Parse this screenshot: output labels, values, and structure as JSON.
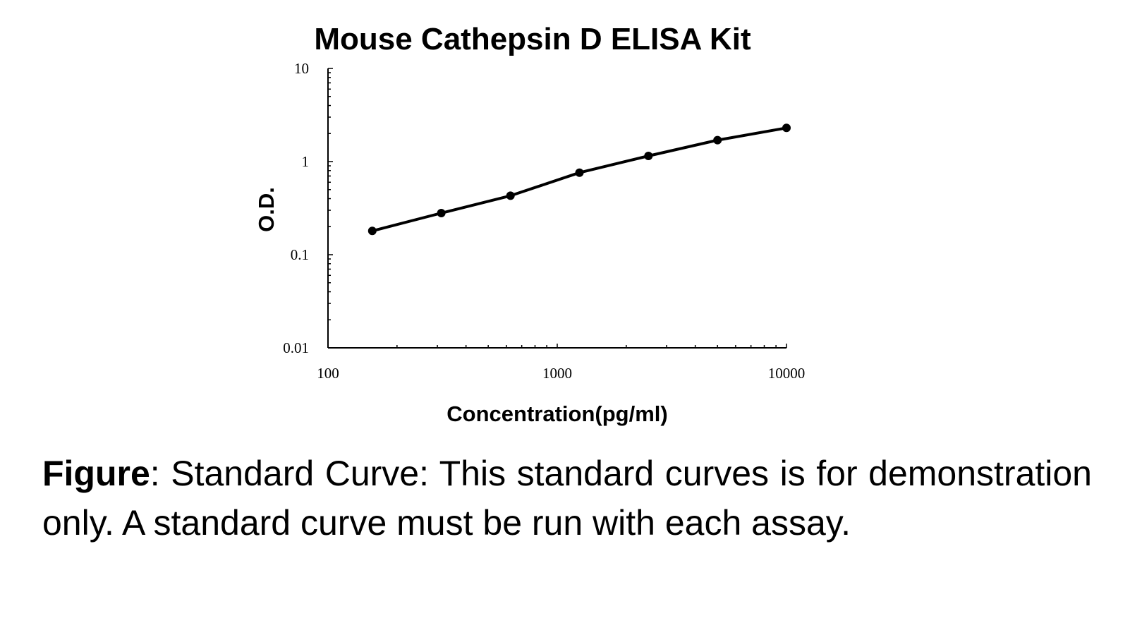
{
  "caption": {
    "label": "Figure",
    "separator": ":",
    "text": " Standard Curve: This standard curves is for demonstration only. A standard curve must be run with each assay."
  },
  "chart_data": {
    "type": "line",
    "title": "Mouse Cathepsin D ELISA Kit",
    "xlabel": "Concentration(pg/ml)",
    "ylabel": "O.D.",
    "xscale": "log",
    "yscale": "log",
    "xlim": [
      100,
      10000
    ],
    "ylim": [
      0.01,
      10
    ],
    "x_ticks": [
      "100",
      "1000",
      "10000"
    ],
    "y_ticks": [
      "0.01",
      "0.1",
      "1",
      "10"
    ],
    "grid": false,
    "series": [
      {
        "x": [
          156,
          312,
          625,
          1250,
          2500,
          5000,
          10000
        ],
        "y": [
          0.18,
          0.28,
          0.43,
          0.76,
          1.15,
          1.7,
          2.3
        ]
      }
    ],
    "colors": {
      "line": "#000000",
      "axis": "#000000"
    }
  }
}
